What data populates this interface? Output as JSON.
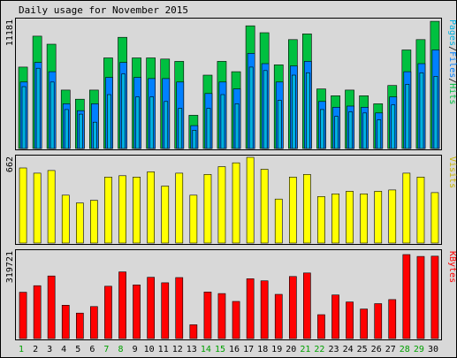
{
  "title": "Daily usage for November 2015",
  "colors": {
    "background": "#d8d8d8",
    "hits": "#00c040",
    "files": "#0080ff",
    "pages": "#00b0e0",
    "visits": "#ffff00",
    "kbytes": "#ff0000",
    "weekday_label": "#000000",
    "weekend_label": "#00a000"
  },
  "chart_data": [
    {
      "type": "bar",
      "name": "pages-files-hits",
      "ylabel_parts": [
        "Pages",
        "/",
        "Files",
        "/",
        "Hits"
      ],
      "ymax_label": "11181",
      "ylim": [
        0,
        11181
      ],
      "categories": [
        "1",
        "2",
        "3",
        "4",
        "5",
        "6",
        "7",
        "8",
        "9",
        "10",
        "11",
        "12",
        "13",
        "14",
        "15",
        "16",
        "17",
        "18",
        "19",
        "20",
        "21",
        "22",
        "23",
        "24",
        "25",
        "26",
        "27",
        "28",
        "29",
        "30"
      ],
      "weekend": [
        "1",
        "7",
        "8",
        "14",
        "15",
        "21",
        "22",
        "28",
        "29"
      ],
      "series": [
        {
          "name": "Hits",
          "values": [
            7100,
            9800,
            9100,
            5100,
            4300,
            5100,
            7900,
            9700,
            7900,
            7900,
            7800,
            7600,
            2900,
            6400,
            7600,
            6700,
            10700,
            10100,
            7300,
            9500,
            10000,
            5200,
            4600,
            5100,
            4600,
            3900,
            5500,
            8600,
            9500,
            11100
          ]
        },
        {
          "name": "Files",
          "values": [
            5800,
            7500,
            6700,
            3900,
            3300,
            3900,
            6200,
            7500,
            6200,
            6100,
            6100,
            5800,
            2000,
            4800,
            5800,
            5200,
            8300,
            7400,
            5800,
            7200,
            7600,
            4100,
            3600,
            3700,
            3600,
            3100,
            4500,
            6700,
            7400,
            8600
          ]
        },
        {
          "name": "Pages",
          "values": [
            5400,
            7000,
            5800,
            3400,
            3000,
            2300,
            4700,
            6500,
            4500,
            4500,
            4100,
            3500,
            1600,
            3500,
            4700,
            3900,
            7100,
            6800,
            4200,
            6400,
            6600,
            3400,
            2800,
            3200,
            3100,
            2500,
            3800,
            5600,
            6600,
            6300
          ]
        }
      ]
    },
    {
      "type": "bar",
      "name": "visits",
      "ylabel": "Visits",
      "ymax_label": "662",
      "ylim": [
        0,
        662
      ],
      "series": [
        {
          "name": "Visits",
          "values": [
            580,
            540,
            560,
            370,
            310,
            330,
            510,
            520,
            510,
            550,
            440,
            540,
            370,
            530,
            590,
            620,
            662,
            570,
            340,
            510,
            530,
            360,
            380,
            400,
            380,
            400,
            410,
            540,
            510,
            390
          ]
        }
      ]
    },
    {
      "type": "bar",
      "name": "kbytes",
      "ylabel": "KBytes",
      "ymax_label": "319721",
      "ylim": [
        0,
        319721
      ],
      "series": [
        {
          "name": "KBytes",
          "values": [
            171000,
            195000,
            231000,
            123000,
            94000,
            118000,
            193000,
            246000,
            198000,
            226000,
            206000,
            225000,
            51000,
            172000,
            166000,
            137000,
            221000,
            213000,
            163000,
            229000,
            242000,
            88000,
            161000,
            135000,
            109000,
            129000,
            144000,
            310000,
            303000,
            304000
          ]
        }
      ]
    }
  ]
}
